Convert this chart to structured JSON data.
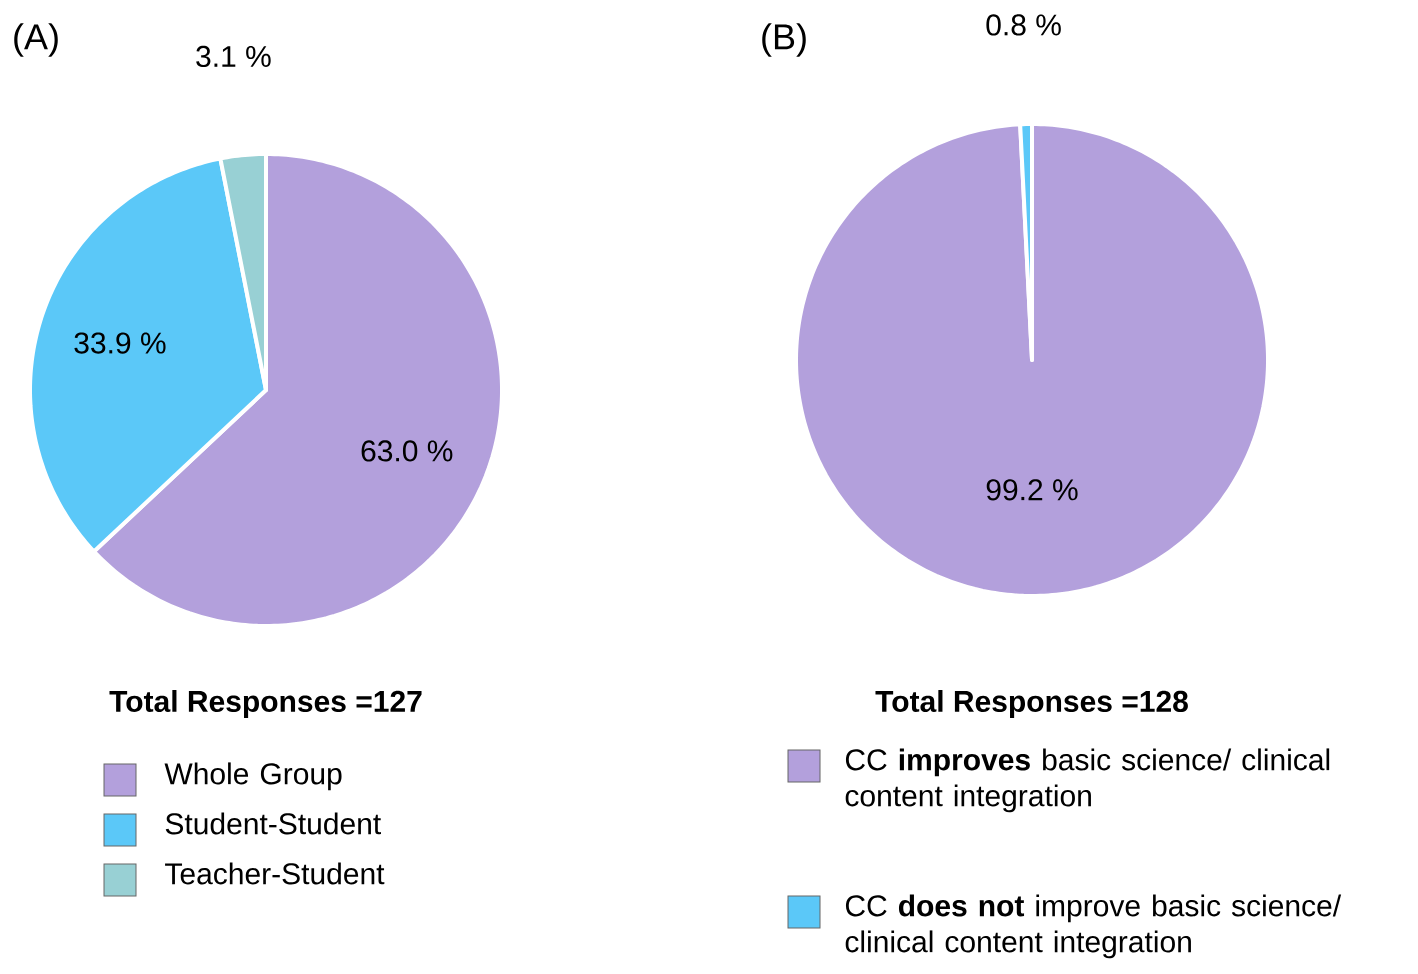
{
  "chart_data": [
    {
      "type": "pie",
      "title": "Total Responses =127",
      "annotations": [
        "(A)"
      ],
      "categories": [
        "Whole Group",
        "Student-Student",
        "Teacher-Student"
      ],
      "values": [
        63.0,
        33.9,
        3.1
      ],
      "colors": [
        "#b3a0dc",
        "#5bc8f8",
        "#98d0d4"
      ],
      "value_labels": [
        "63.0 %",
        "33.9 %",
        "3.1 %"
      ],
      "legend": "bottom"
    },
    {
      "type": "pie",
      "title": "Total Responses =128",
      "annotations": [
        "(B)"
      ],
      "categories": [
        "CC **improves** basic science/ clinical content integration",
        "CC **does not** improve basic science/ clinical content integration"
      ],
      "values": [
        99.2,
        0.8
      ],
      "colors": [
        "#b3a0dc",
        "#5bc8f8"
      ],
      "value_labels": [
        "99.2 %",
        "0.8 %"
      ],
      "legend": "bottom"
    }
  ]
}
